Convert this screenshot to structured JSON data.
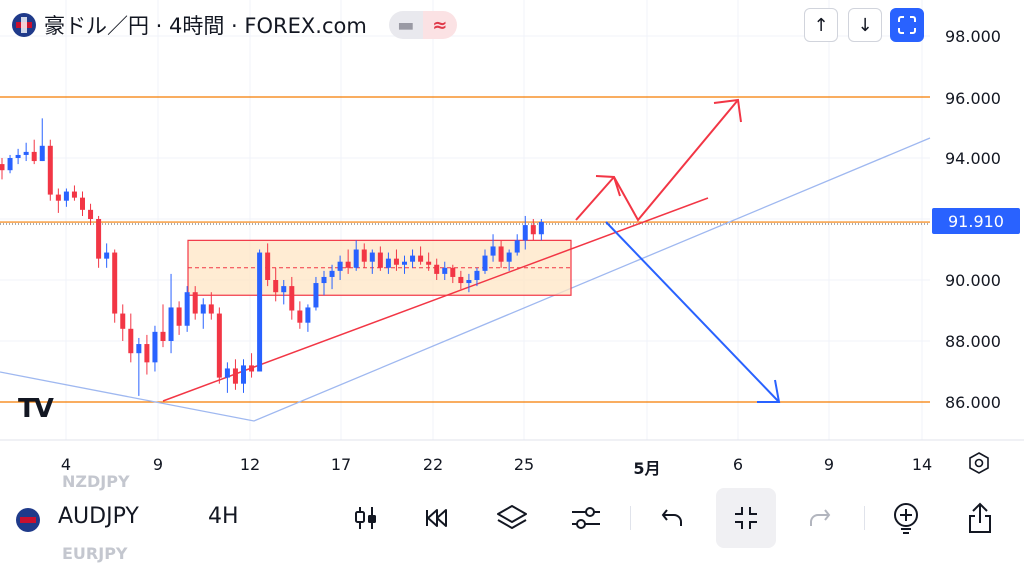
{
  "header": {
    "title": "豪ドル／円 · 4時間 · FOREX.com",
    "pill_left": "▬",
    "pill_right": "≈",
    "btn_up": "↑",
    "btn_down": "↓"
  },
  "price_axis": {
    "labels": [
      "98.000",
      "96.000",
      "94.000",
      "92.000",
      "90.000",
      "88.000",
      "86.000"
    ],
    "current_price": "91.910"
  },
  "time_axis": {
    "labels": [
      "4",
      "9",
      "12",
      "17",
      "22",
      "25",
      "5月",
      "6",
      "9",
      "14"
    ]
  },
  "logo_text": "TV",
  "toolbar": {
    "ghost_above": "NZDJPY",
    "ghost_below": "EURJPY",
    "symbol": "AUDJPY",
    "interval": "4H"
  },
  "colors": {
    "up": "#2962ff",
    "down": "#f23645",
    "hline": "#f57c00",
    "box_fill": "#ffe5c4",
    "box_border": "#f23645",
    "trend_red": "#f23645",
    "trend_light": "#9fb8f0",
    "arrow_blue": "#2962ff",
    "arrow_red": "#f23645"
  },
  "chart_data": {
    "type": "candlestick",
    "price_range": [
      85,
      99
    ],
    "horizontal_lines": [
      96.0,
      86.0,
      91.9
    ],
    "current_price": 91.91,
    "range_box": {
      "top": 91.3,
      "bottom": 89.5
    },
    "candles": [
      {
        "o": 93.8,
        "h": 94.0,
        "l": 93.3,
        "c": 93.6
      },
      {
        "o": 93.6,
        "h": 94.1,
        "l": 93.5,
        "c": 94.0
      },
      {
        "o": 94.0,
        "h": 94.3,
        "l": 93.8,
        "c": 94.1
      },
      {
        "o": 94.1,
        "h": 94.5,
        "l": 93.9,
        "c": 94.2
      },
      {
        "o": 94.2,
        "h": 94.6,
        "l": 93.8,
        "c": 93.9
      },
      {
        "o": 93.9,
        "h": 95.3,
        "l": 93.9,
        "c": 94.4
      },
      {
        "o": 94.4,
        "h": 94.6,
        "l": 92.6,
        "c": 92.8
      },
      {
        "o": 92.8,
        "h": 93.0,
        "l": 92.2,
        "c": 92.6
      },
      {
        "o": 92.6,
        "h": 93.0,
        "l": 92.4,
        "c": 92.9
      },
      {
        "o": 92.9,
        "h": 93.1,
        "l": 92.6,
        "c": 92.7
      },
      {
        "o": 92.7,
        "h": 92.9,
        "l": 92.1,
        "c": 92.3
      },
      {
        "o": 92.3,
        "h": 92.5,
        "l": 91.8,
        "c": 92.0
      },
      {
        "o": 92.0,
        "h": 92.1,
        "l": 90.4,
        "c": 90.7
      },
      {
        "o": 90.7,
        "h": 91.2,
        "l": 90.4,
        "c": 90.9
      },
      {
        "o": 90.9,
        "h": 91.0,
        "l": 88.6,
        "c": 88.9
      },
      {
        "o": 88.9,
        "h": 89.2,
        "l": 88.0,
        "c": 88.4
      },
      {
        "o": 88.4,
        "h": 88.9,
        "l": 87.3,
        "c": 87.6
      },
      {
        "o": 87.6,
        "h": 88.1,
        "l": 86.2,
        "c": 87.9
      },
      {
        "o": 87.9,
        "h": 88.2,
        "l": 86.9,
        "c": 87.3
      },
      {
        "o": 87.3,
        "h": 88.5,
        "l": 87.0,
        "c": 88.3
      },
      {
        "o": 88.3,
        "h": 89.2,
        "l": 87.8,
        "c": 88.0
      },
      {
        "o": 88.0,
        "h": 90.2,
        "l": 87.6,
        "c": 89.1
      },
      {
        "o": 89.1,
        "h": 89.3,
        "l": 88.2,
        "c": 88.5
      },
      {
        "o": 88.5,
        "h": 89.8,
        "l": 88.3,
        "c": 89.6
      },
      {
        "o": 89.6,
        "h": 89.8,
        "l": 88.7,
        "c": 88.9
      },
      {
        "o": 88.9,
        "h": 89.4,
        "l": 88.4,
        "c": 89.2
      },
      {
        "o": 89.2,
        "h": 89.6,
        "l": 88.7,
        "c": 88.9
      },
      {
        "o": 88.9,
        "h": 89.1,
        "l": 86.6,
        "c": 86.8
      },
      {
        "o": 86.8,
        "h": 87.3,
        "l": 86.3,
        "c": 87.1
      },
      {
        "o": 87.1,
        "h": 87.4,
        "l": 86.4,
        "c": 86.6
      },
      {
        "o": 86.6,
        "h": 87.4,
        "l": 86.3,
        "c": 87.2
      },
      {
        "o": 87.2,
        "h": 87.6,
        "l": 86.8,
        "c": 87.0
      },
      {
        "o": 87.0,
        "h": 91.0,
        "l": 87.0,
        "c": 90.9
      },
      {
        "o": 90.9,
        "h": 91.2,
        "l": 89.8,
        "c": 90.0
      },
      {
        "o": 90.0,
        "h": 90.4,
        "l": 89.3,
        "c": 89.6
      },
      {
        "o": 89.6,
        "h": 90.0,
        "l": 89.2,
        "c": 89.8
      },
      {
        "o": 89.8,
        "h": 90.1,
        "l": 88.7,
        "c": 89.0
      },
      {
        "o": 89.0,
        "h": 89.3,
        "l": 88.4,
        "c": 88.6
      },
      {
        "o": 88.6,
        "h": 89.2,
        "l": 88.3,
        "c": 89.1
      },
      {
        "o": 89.1,
        "h": 90.1,
        "l": 89.0,
        "c": 89.9
      },
      {
        "o": 89.9,
        "h": 90.3,
        "l": 89.5,
        "c": 90.1
      },
      {
        "o": 90.1,
        "h": 90.5,
        "l": 89.7,
        "c": 90.3
      },
      {
        "o": 90.3,
        "h": 90.8,
        "l": 90.0,
        "c": 90.6
      },
      {
        "o": 90.6,
        "h": 91.0,
        "l": 90.2,
        "c": 90.4
      },
      {
        "o": 90.4,
        "h": 91.3,
        "l": 90.3,
        "c": 91.0
      },
      {
        "o": 91.0,
        "h": 91.2,
        "l": 90.4,
        "c": 90.6
      },
      {
        "o": 90.6,
        "h": 91.0,
        "l": 90.2,
        "c": 90.9
      },
      {
        "o": 90.9,
        "h": 91.1,
        "l": 90.3,
        "c": 90.4
      },
      {
        "o": 90.4,
        "h": 90.9,
        "l": 90.2,
        "c": 90.7
      },
      {
        "o": 90.7,
        "h": 91.0,
        "l": 90.3,
        "c": 90.5
      },
      {
        "o": 90.5,
        "h": 90.8,
        "l": 90.2,
        "c": 90.6
      },
      {
        "o": 90.6,
        "h": 91.0,
        "l": 90.4,
        "c": 90.8
      },
      {
        "o": 90.8,
        "h": 91.1,
        "l": 90.5,
        "c": 90.6
      },
      {
        "o": 90.6,
        "h": 90.9,
        "l": 90.3,
        "c": 90.5
      },
      {
        "o": 90.5,
        "h": 90.7,
        "l": 90.0,
        "c": 90.2
      },
      {
        "o": 90.2,
        "h": 90.6,
        "l": 90.0,
        "c": 90.4
      },
      {
        "o": 90.4,
        "h": 90.5,
        "l": 89.9,
        "c": 90.1
      },
      {
        "o": 90.1,
        "h": 90.3,
        "l": 89.7,
        "c": 89.9
      },
      {
        "o": 89.9,
        "h": 90.2,
        "l": 89.6,
        "c": 90.0
      },
      {
        "o": 90.0,
        "h": 90.4,
        "l": 89.8,
        "c": 90.3
      },
      {
        "o": 90.3,
        "h": 91.0,
        "l": 90.2,
        "c": 90.8
      },
      {
        "o": 90.8,
        "h": 91.5,
        "l": 90.6,
        "c": 91.1
      },
      {
        "o": 91.1,
        "h": 91.3,
        "l": 90.4,
        "c": 90.6
      },
      {
        "o": 90.6,
        "h": 91.0,
        "l": 90.3,
        "c": 90.9
      },
      {
        "o": 90.9,
        "h": 91.5,
        "l": 90.8,
        "c": 91.3
      },
      {
        "o": 91.3,
        "h": 92.1,
        "l": 91.0,
        "c": 91.8
      },
      {
        "o": 91.8,
        "h": 92.0,
        "l": 91.3,
        "c": 91.5
      },
      {
        "o": 91.5,
        "h": 92.0,
        "l": 91.3,
        "c": 91.9
      }
    ]
  }
}
